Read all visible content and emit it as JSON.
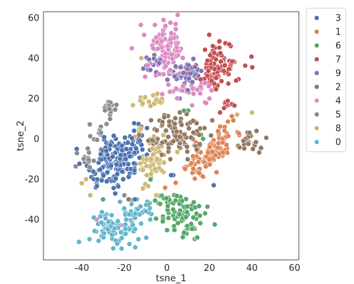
{
  "chart_data": {
    "type": "scatter",
    "xlabel": "tsne_1",
    "ylabel": "tsne_2",
    "xlim": [
      -58,
      62
    ],
    "ylim": [
      -60,
      63
    ],
    "xticks": [
      -40,
      -20,
      0,
      20,
      40,
      60
    ],
    "yticks": [
      -40,
      -20,
      0,
      20,
      40,
      60
    ],
    "grid": false,
    "legend_position": "outside-top-right",
    "series": [
      {
        "name": "3",
        "color": "#4c72b0",
        "clusters": [
          {
            "center": [
              -23,
              -10
            ],
            "spread": [
              7,
              6
            ],
            "count": 130,
            "angle": 35
          },
          {
            "center": [
              -30,
              -18
            ],
            "spread": [
              4,
              3
            ],
            "count": 25,
            "angle": 0
          },
          {
            "center": [
              -15,
              2
            ],
            "spread": [
              3,
              3
            ],
            "count": 12,
            "angle": 0
          }
        ],
        "outliers": [
          [
            2,
            -18
          ],
          [
            22,
            -23
          ],
          [
            3,
            -18
          ],
          [
            -15,
            -30
          ]
        ]
      },
      {
        "name": "1",
        "color": "#dd8452",
        "clusters": [
          {
            "center": [
              20,
              -8
            ],
            "spread": [
              9,
              2.8
            ],
            "count": 115,
            "angle": 50
          }
        ],
        "outliers": []
      },
      {
        "name": "6",
        "color": "#55a868",
        "clusters": [
          {
            "center": [
              7,
              -38
            ],
            "spread": [
              6,
              5
            ],
            "count": 70,
            "angle": -35
          },
          {
            "center": [
              2,
              -30
            ],
            "spread": [
              4,
              2
            ],
            "count": 22,
            "angle": 0
          }
        ],
        "outliers": [
          [
            8,
            14
          ],
          [
            10,
            14
          ],
          [
            16,
            2
          ],
          [
            17,
            0
          ],
          [
            -30,
            -30
          ]
        ]
      },
      {
        "name": "7",
        "color": "#c44e52",
        "clusters": [
          {
            "center": [
              23,
              40
            ],
            "spread": [
              3,
              6
            ],
            "count": 40,
            "angle": 0
          },
          {
            "center": [
              25,
              33
            ],
            "spread": [
              6,
              4
            ],
            "count": 60,
            "angle": 0
          },
          {
            "center": [
              28,
              18
            ],
            "spread": [
              2,
              1.5
            ],
            "count": 12,
            "angle": 0
          }
        ],
        "outliers": [
          [
            18,
            18
          ]
        ]
      },
      {
        "name": "9",
        "color": "#8172b3",
        "clusters": [
          {
            "center": [
              10,
              32
            ],
            "spread": [
              4,
              3
            ],
            "count": 50,
            "angle": 0
          },
          {
            "center": [
              -7,
              37
            ],
            "spread": [
              3,
              2
            ],
            "count": 15,
            "angle": 0
          }
        ],
        "outliers": [
          [
            -5,
            33
          ],
          [
            6,
            20
          ]
        ]
      },
      {
        "name": "2",
        "color": "#937860",
        "clusters": [
          {
            "center": [
              5,
              2
            ],
            "spread": [
              8,
              6
            ],
            "count": 105,
            "angle": 0
          },
          {
            "center": [
              38,
              -2
            ],
            "spread": [
              3.5,
              2.5
            ],
            "count": 22,
            "angle": 0
          }
        ],
        "outliers": [
          [
            -12,
            6
          ],
          [
            -18,
            -30
          ]
        ]
      },
      {
        "name": "4",
        "color": "#da8bc3",
        "clusters": [
          {
            "center": [
              0,
              45
            ],
            "spread": [
              4.5,
              7
            ],
            "count": 100,
            "angle": 0
          },
          {
            "center": [
              10,
              24
            ],
            "spread": [
              5,
              3
            ],
            "count": 30,
            "angle": 0
          }
        ],
        "outliers": [
          [
            20,
            20
          ],
          [
            21,
            24
          ],
          [
            -33,
            -40
          ],
          [
            -22,
            -43
          ]
        ]
      },
      {
        "name": "5",
        "color": "#8c8c8c",
        "clusters": [
          {
            "center": [
              -27,
              15
            ],
            "spread": [
              1.5,
              2
            ],
            "count": 18,
            "angle": 0
          },
          {
            "center": [
              -32,
              4
            ],
            "spread": [
              2,
              2
            ],
            "count": 10,
            "angle": 0
          },
          {
            "center": [
              -38,
              -8
            ],
            "spread": [
              2,
              4
            ],
            "count": 15,
            "angle": 0
          }
        ],
        "outliers": [
          [
            -33,
            -22
          ],
          [
            -20,
            -28
          ]
        ]
      },
      {
        "name": "8",
        "color": "#ccb974",
        "clusters": [
          {
            "center": [
              -7,
              -10
            ],
            "spread": [
              3.5,
              6
            ],
            "count": 55,
            "angle": 0
          },
          {
            "center": [
              -8,
              19
            ],
            "spread": [
              3,
              2
            ],
            "count": 20,
            "angle": 0
          }
        ],
        "outliers": [
          [
            -13,
            5
          ],
          [
            -15,
            1
          ],
          [
            -38,
            -20
          ],
          [
            -36,
            -28
          ],
          [
            -40,
            -22
          ],
          [
            -5,
            -28
          ],
          [
            33,
            12
          ],
          [
            40,
            13
          ],
          [
            -12,
            40
          ]
        ]
      },
      {
        "name": "0",
        "color": "#64b5cd",
        "clusters": [
          {
            "center": [
              -26,
              -45
            ],
            "spread": [
              6,
              4
            ],
            "count": 85,
            "angle": 0
          },
          {
            "center": [
              -13,
              -36
            ],
            "spread": [
              3.5,
              3
            ],
            "count": 30,
            "angle": 0
          }
        ],
        "outliers": []
      }
    ]
  }
}
